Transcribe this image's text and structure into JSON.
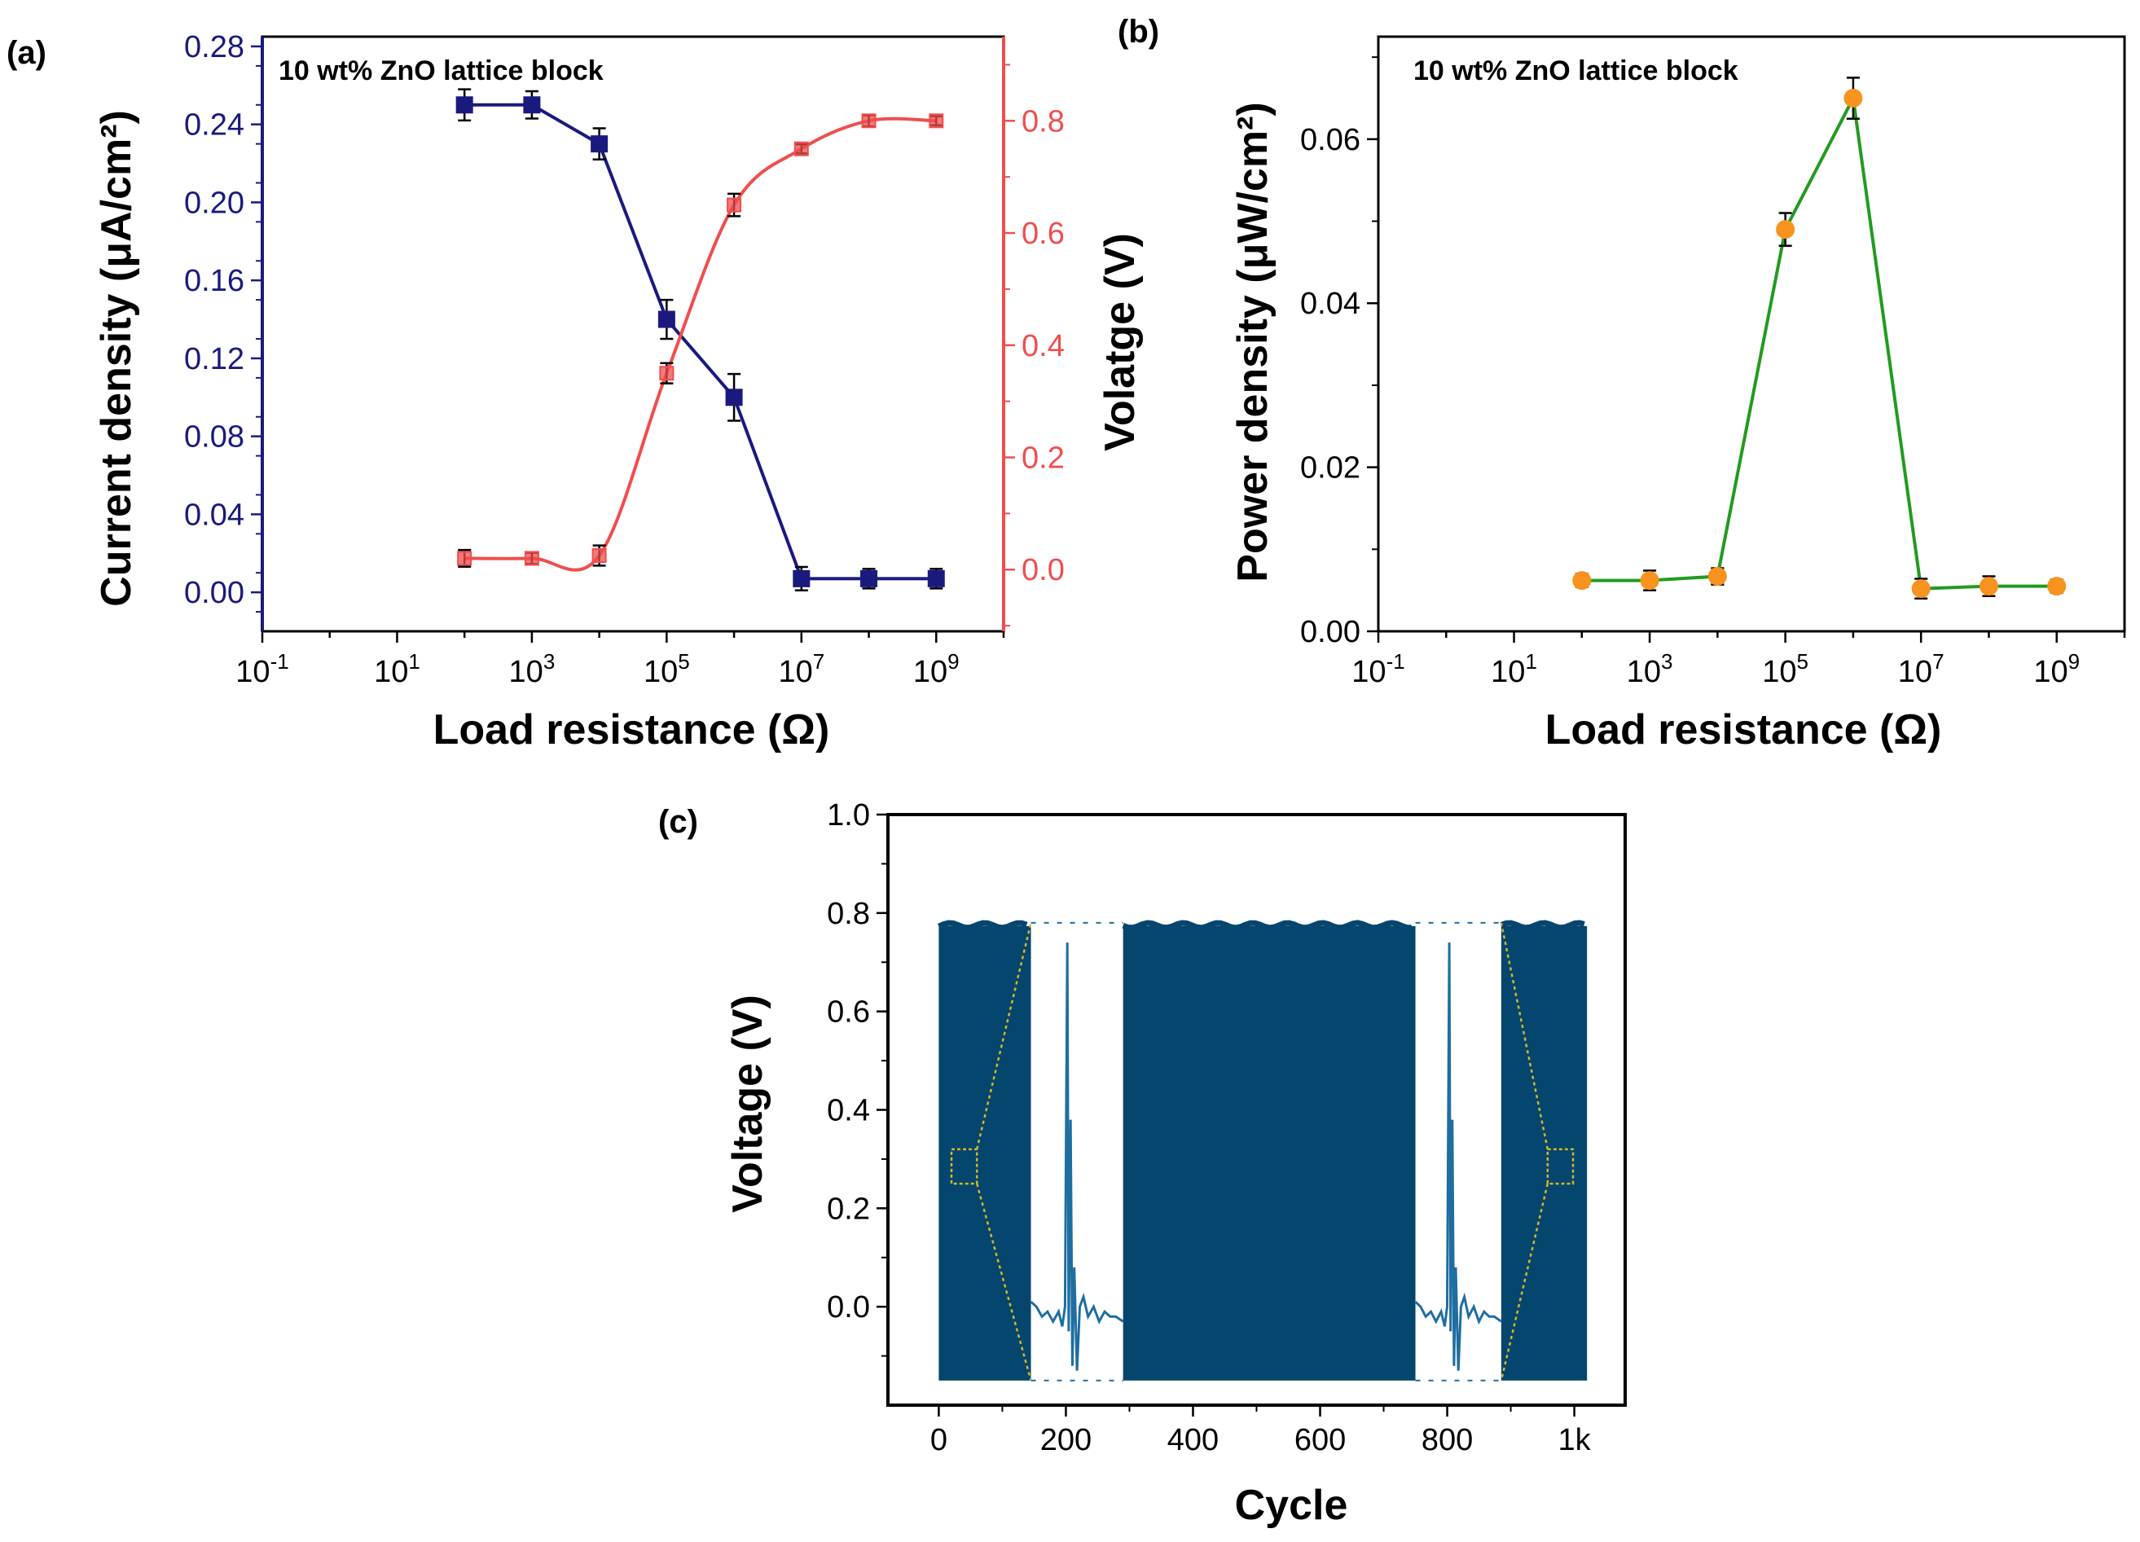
{
  "colors": {
    "current": "#1a1a7e",
    "voltage": "#f04e4e",
    "power_line": "#239b1f",
    "power_marker": "#f7931e",
    "signal": "#1f6ea0",
    "signal_fill": "#05466e",
    "zoom": "#d4b62a",
    "axis": "#000000"
  },
  "chart_data": [
    {
      "id": "a",
      "panel_label": "(a)",
      "type": "line",
      "annotation": "10 wt% ZnO lattice block",
      "xlabel": "Load resistance (Ω)",
      "x_scale": "log",
      "xlim_exp": [
        -1,
        10
      ],
      "x_ticks": [
        {
          "base": "10",
          "exp": "-1",
          "e": -1
        },
        {
          "base": "10",
          "exp": "1",
          "e": 1
        },
        {
          "base": "10",
          "exp": "3",
          "e": 3
        },
        {
          "base": "10",
          "exp": "5",
          "e": 5
        },
        {
          "base": "10",
          "exp": "7",
          "e": 7
        },
        {
          "base": "10",
          "exp": "9",
          "e": 9
        }
      ],
      "ylabel_left": "Current density (μA/cm²)",
      "ylim_left": [
        -0.02,
        0.285
      ],
      "y_ticks_left": [
        {
          "v": 0.0,
          "label": "0.00"
        },
        {
          "v": 0.04,
          "label": "0.04"
        },
        {
          "v": 0.08,
          "label": "0.08"
        },
        {
          "v": 0.12,
          "label": "0.12"
        },
        {
          "v": 0.16,
          "label": "0.16"
        },
        {
          "v": 0.2,
          "label": "0.20"
        },
        {
          "v": 0.24,
          "label": "0.24"
        },
        {
          "v": 0.28,
          "label": "0.28"
        }
      ],
      "ylabel_right": "Volatge (V)",
      "ylim_right": [
        -0.11,
        0.95
      ],
      "y_ticks_right": [
        {
          "v": 0.0,
          "label": "0.0"
        },
        {
          "v": 0.2,
          "label": "0.2"
        },
        {
          "v": 0.4,
          "label": "0.4"
        },
        {
          "v": 0.6,
          "label": "0.6"
        },
        {
          "v": 0.8,
          "label": "0.8"
        }
      ],
      "x_exp": [
        2,
        3,
        4,
        5,
        6,
        7,
        8,
        9
      ],
      "series": [
        {
          "name": "Current density",
          "axis": "left",
          "marker": "square",
          "values": [
            0.25,
            0.25,
            0.23,
            0.14,
            0.1,
            0.007,
            0.007,
            0.007
          ],
          "errors": [
            0.008,
            0.007,
            0.008,
            0.01,
            0.012,
            0.006,
            0.005,
            0.005
          ]
        },
        {
          "name": "Voltage",
          "axis": "right",
          "marker": "square",
          "values": [
            0.02,
            0.02,
            0.025,
            0.35,
            0.65,
            0.75,
            0.8,
            0.8
          ],
          "errors": [
            0.015,
            0.01,
            0.018,
            0.018,
            0.02,
            0.008,
            0.01,
            0.008
          ]
        }
      ]
    },
    {
      "id": "b",
      "panel_label": "(b)",
      "type": "line",
      "annotation": "10 wt% ZnO lattice block",
      "xlabel": "Load resistance (Ω)",
      "x_scale": "log",
      "xlim_exp": [
        -1,
        10
      ],
      "x_ticks": [
        {
          "base": "10",
          "exp": "-1",
          "e": -1
        },
        {
          "base": "10",
          "exp": "1",
          "e": 1
        },
        {
          "base": "10",
          "exp": "3",
          "e": 3
        },
        {
          "base": "10",
          "exp": "5",
          "e": 5
        },
        {
          "base": "10",
          "exp": "7",
          "e": 7
        },
        {
          "base": "10",
          "exp": "9",
          "e": 9
        }
      ],
      "ylabel": "Power density (μW/cm²)",
      "ylim": [
        0,
        0.0725
      ],
      "y_ticks": [
        {
          "v": 0.0,
          "label": "0.00"
        },
        {
          "v": 0.02,
          "label": "0.02"
        },
        {
          "v": 0.04,
          "label": "0.04"
        },
        {
          "v": 0.06,
          "label": "0.06"
        }
      ],
      "x_exp": [
        2,
        3,
        4,
        5,
        6,
        7,
        8,
        9
      ],
      "series": [
        {
          "name": "Power density",
          "marker": "circle",
          "values": [
            0.0062,
            0.0062,
            0.0067,
            0.049,
            0.065,
            0.0052,
            0.0055,
            0.0055
          ],
          "errors": [
            0.0008,
            0.0012,
            0.001,
            0.002,
            0.0025,
            0.0012,
            0.0012,
            0.0008
          ]
        }
      ]
    },
    {
      "id": "c",
      "panel_label": "(c)",
      "type": "line",
      "xlabel": "Cycle",
      "ylabel": "Voltage (V)",
      "xlim": [
        -80,
        1080
      ],
      "ylim": [
        -0.2,
        1.0
      ],
      "x_ticks": [
        {
          "v": 0,
          "label": "0"
        },
        {
          "v": 200,
          "label": "200"
        },
        {
          "v": 400,
          "label": "400"
        },
        {
          "v": 600,
          "label": "600"
        },
        {
          "v": 800,
          "label": "800"
        },
        {
          "v": 1000,
          "label": "1k"
        }
      ],
      "y_ticks": [
        {
          "v": 0.0,
          "label": "0.0"
        },
        {
          "v": 0.2,
          "label": "0.2"
        },
        {
          "v": 0.4,
          "label": "0.4"
        },
        {
          "v": 0.6,
          "label": "0.6"
        },
        {
          "v": 0.8,
          "label": "0.8"
        },
        {
          "v": 1.0,
          "label": "1.0"
        }
      ],
      "signal_peak": 0.78,
      "signal_trough": -0.15,
      "dense_blocks": [
        [
          0,
          145
        ],
        [
          290,
          750
        ],
        [
          885,
          1020
        ]
      ],
      "zoom_insets": [
        {
          "source_range": [
            20,
            60
          ],
          "source_v": [
            0.25,
            0.32
          ],
          "inset_range": [
            145,
            290
          ]
        },
        {
          "source_range": [
            958,
            998
          ],
          "source_v": [
            0.25,
            0.32
          ],
          "inset_range": [
            750,
            885
          ]
        }
      ],
      "inset_trace": [
        [
          0.0,
          0.01
        ],
        [
          0.06,
          0.0
        ],
        [
          0.12,
          -0.02
        ],
        [
          0.18,
          -0.01
        ],
        [
          0.24,
          -0.03
        ],
        [
          0.3,
          -0.01
        ],
        [
          0.34,
          -0.04
        ],
        [
          0.37,
          0.0
        ],
        [
          0.395,
          0.74
        ],
        [
          0.41,
          -0.05
        ],
        [
          0.43,
          0.38
        ],
        [
          0.45,
          -0.12
        ],
        [
          0.47,
          0.08
        ],
        [
          0.5,
          -0.13
        ],
        [
          0.53,
          0.0
        ],
        [
          0.57,
          0.02
        ],
        [
          0.62,
          -0.02
        ],
        [
          0.68,
          0.0
        ],
        [
          0.74,
          -0.03
        ],
        [
          0.8,
          -0.01
        ],
        [
          0.86,
          -0.02
        ],
        [
          0.92,
          -0.02
        ],
        [
          1.0,
          -0.03
        ]
      ]
    }
  ]
}
